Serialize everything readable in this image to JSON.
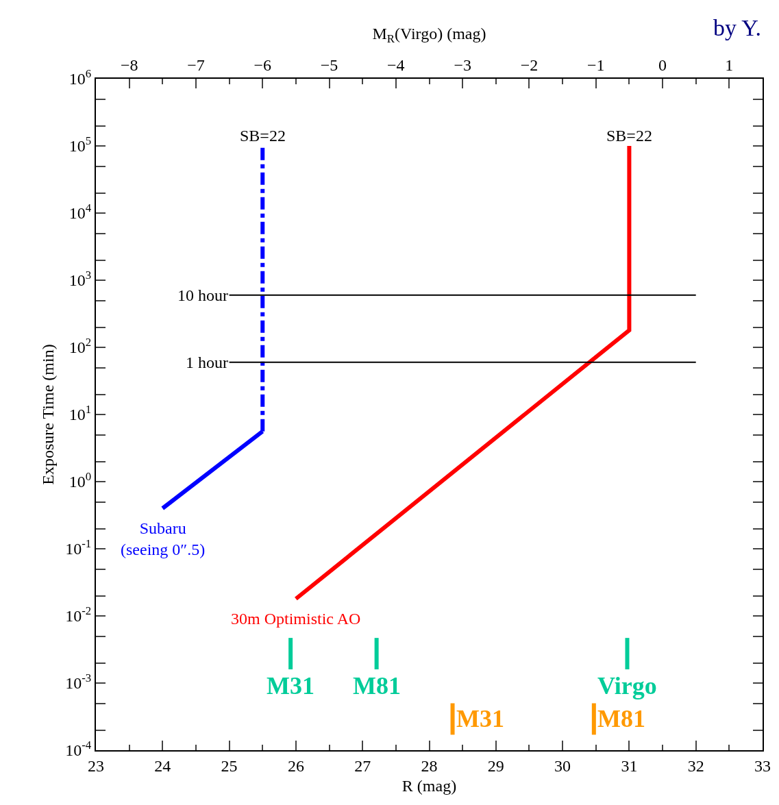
{
  "chart_data": {
    "type": "line",
    "xlabel": "R (mag)",
    "ylabel": "Exposure Time (min)",
    "x2label": "M$_{R}$(Virgo) (mag)",
    "log": "y",
    "legend": false,
    "marker": "none",
    "xlim": [
      23,
      33
    ],
    "xticks": [
      23,
      24,
      25,
      26,
      27,
      28,
      29,
      30,
      31,
      32,
      33
    ],
    "x2lim": [
      -8.5,
      1.5
    ],
    "x2ticks": [
      -8,
      -7,
      -6,
      -5,
      -4,
      -3,
      -2,
      -1,
      0,
      1
    ],
    "ylim": [
      0.0001,
      1000000
    ],
    "yticks": [
      {
        "value": 0.0001,
        "label": "10$^{-4}$"
      },
      {
        "value": 0.001,
        "label": "10$^{-3}$"
      },
      {
        "value": 0.01,
        "label": "10$^{-2}$"
      },
      {
        "value": 0.1,
        "label": "10$^{-1}$"
      },
      {
        "value": 1,
        "label": "10$^{0}$"
      },
      {
        "value": 10,
        "label": "10$^{1}$"
      },
      {
        "value": 100,
        "label": "10$^{2}$"
      },
      {
        "value": 1000,
        "label": "10$^{3}$"
      },
      {
        "value": 10000,
        "label": "10$^{4}$"
      },
      {
        "value": 100000,
        "label": "10$^{5}$"
      },
      {
        "value": 1000000,
        "label": "10$^{6}$"
      }
    ],
    "series": [
      {
        "name": "Subaru\n(seeing 0″.5)",
        "color": "#0000ff",
        "x": [
          24,
          25.5
        ],
        "values": [
          0.4,
          5.6
        ],
        "line_style": "solid"
      },
      {
        "color": "#0000ff",
        "x": [
          25.5,
          25.5
        ],
        "values": [
          5.6,
          100000
        ],
        "line_style": "dashed"
      },
      {
        "name": "30m Optimistic AO",
        "color": "#ff0000",
        "x": [
          26,
          31,
          31
        ],
        "values": [
          0.018,
          180,
          100000
        ],
        "line_style": "solid"
      },
      {
        "name": "M31",
        "color": "#00cc99",
        "x": [
          25.92,
          25.92
        ],
        "values": [
          0.0047,
          0.0016
        ],
        "line_style": "solid"
      },
      {
        "name": "M81",
        "color": "#00cc99",
        "x": [
          27.21,
          27.21
        ],
        "values": [
          0.0047,
          0.0016
        ],
        "line_style": "solid"
      },
      {
        "name": "Virgo",
        "color": "#00cc99",
        "x": [
          30.97,
          30.97
        ],
        "values": [
          0.0047,
          0.0016
        ],
        "line_style": "solid"
      },
      {
        "name": "M31",
        "color": "#ff9900",
        "x": [
          28.35,
          28.35
        ],
        "values": [
          0.0005,
          0.00017
        ],
        "line_style": "solid"
      },
      {
        "name": "M81",
        "color": "#ff9900",
        "x": [
          30.47,
          30.47
        ],
        "values": [
          0.0005,
          0.00017
        ],
        "line_style": "solid"
      }
    ],
    "ref_lines": [
      {
        "axis": "y",
        "value": 600,
        "label": "10 hour",
        "color": "#000000"
      },
      {
        "axis": "y",
        "value": 60,
        "label": "1 hour",
        "color": "#000000"
      }
    ],
    "annotations": [
      {
        "text": "SB=22",
        "x": 25.5,
        "y": 100000
      },
      {
        "text": "SB=22",
        "x": 31,
        "y": 100000
      },
      "by Y."
    ]
  }
}
